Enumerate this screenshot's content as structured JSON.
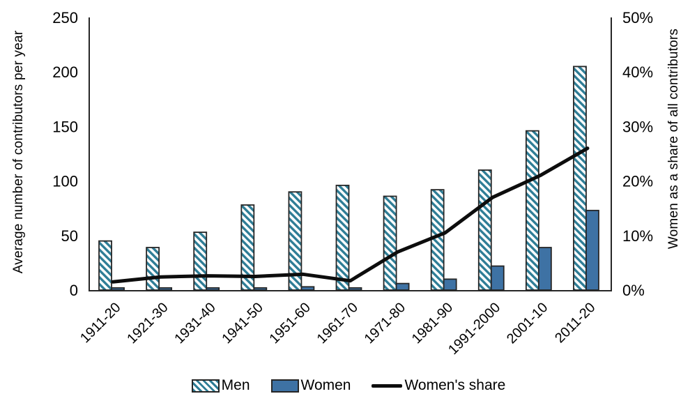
{
  "theme": {
    "background": "#ffffff",
    "men_stripe": "#2E7D96",
    "women_fill": "#3E72A4",
    "bar_border": "#262626",
    "share_line": "#0D0D0D",
    "axis_line": "#262626",
    "text": "#000000"
  },
  "chart_data": {
    "type": "bar",
    "subtype": "clustered bars with secondary-axis line",
    "categories": [
      "1911-20",
      "1921-30",
      "1931-40",
      "1941-50",
      "1951-60",
      "1961-70",
      "1971-80",
      "1981-90",
      "1991-2000",
      "2001-10",
      "2011-20"
    ],
    "series": [
      {
        "name": "Men",
        "type": "bar",
        "axis": "left",
        "style": "hatched",
        "values": [
          45,
          39,
          53,
          78,
          90,
          96,
          86,
          92,
          110,
          146,
          205
        ]
      },
      {
        "name": "Women",
        "type": "bar",
        "axis": "left",
        "style": "solid",
        "values": [
          2,
          2,
          2,
          2,
          3,
          2,
          6,
          10,
          22,
          39,
          73
        ]
      },
      {
        "name": "Women's share",
        "type": "line",
        "axis": "right",
        "unit": "%",
        "values": [
          1.5,
          2.4,
          2.6,
          2.5,
          2.9,
          1.7,
          7,
          10.5,
          17,
          21,
          26
        ]
      }
    ],
    "title": "",
    "xlabel": "",
    "ylabel_left": "Average number of contributors per year",
    "ylabel_right": "Women as a share of all contributors",
    "ylim_left": [
      0,
      250
    ],
    "ylim_right_pct": [
      0,
      50
    ],
    "left_ticks": [
      {
        "v": 0,
        "label": "0"
      },
      {
        "v": 50,
        "label": "50"
      },
      {
        "v": 100,
        "label": "100"
      },
      {
        "v": 150,
        "label": "150"
      },
      {
        "v": 200,
        "label": "200"
      },
      {
        "v": 250,
        "label": "250"
      }
    ],
    "right_ticks": [
      {
        "v": 0,
        "label": "0%"
      },
      {
        "v": 10,
        "label": "10%"
      },
      {
        "v": 20,
        "label": "20%"
      },
      {
        "v": 30,
        "label": "30%"
      },
      {
        "v": 40,
        "label": "40%"
      },
      {
        "v": 50,
        "label": "50%"
      }
    ],
    "grid": false,
    "legend_position": "bottom",
    "x_tick_rotation_deg": -45
  },
  "legend": {
    "items": [
      {
        "label": "Men",
        "swatch": "hatched-bar"
      },
      {
        "label": "Women",
        "swatch": "solid-bar"
      },
      {
        "label": "Women's share",
        "swatch": "line"
      }
    ]
  }
}
